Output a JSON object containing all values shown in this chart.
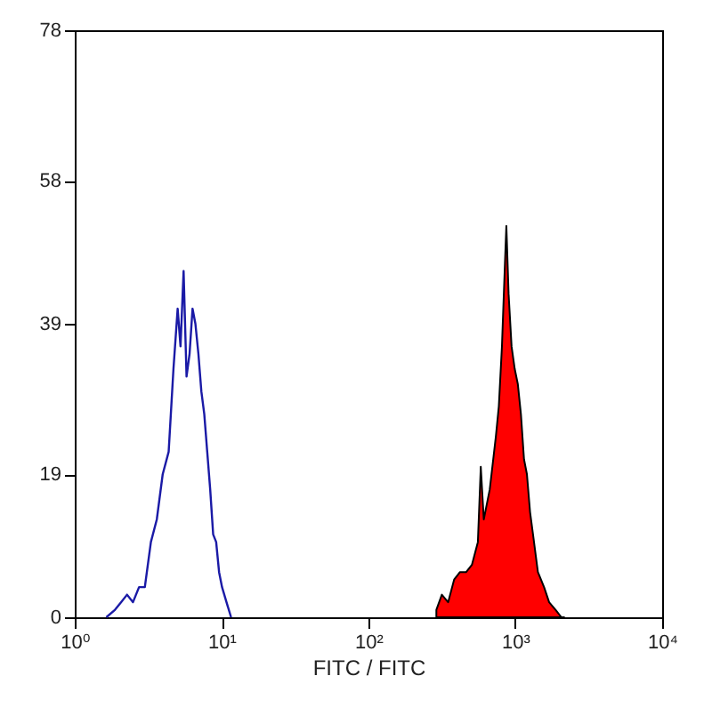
{
  "chart_data": {
    "type": "line",
    "xlabel": "FITC / FITC",
    "log": "x",
    "xlim": [
      1,
      10000
    ],
    "xticks": [
      {
        "value": 1,
        "label": "10⁰"
      },
      {
        "value": 10,
        "label": "10¹"
      },
      {
        "value": 100,
        "label": "10²"
      },
      {
        "value": 1000,
        "label": "10³"
      },
      {
        "value": 10000,
        "label": "10⁴"
      }
    ],
    "ylim": [
      0,
      78
    ],
    "yticks": [
      0,
      19,
      39,
      58,
      78
    ],
    "series": [
      {
        "color": "#1a1aa6",
        "x": [
          1.64,
          1.88,
          2.07,
          2.27,
          2.49,
          2.74,
          3.0,
          3.3,
          3.62,
          3.97,
          4.36,
          4.7,
          5.02,
          5.25,
          5.51,
          5.77,
          6.05,
          6.34,
          6.63,
          6.95,
          7.28,
          7.62,
          7.98,
          8.36,
          8.76,
          9.18,
          9.61,
          10.07,
          10.8,
          11.6
        ],
        "values": [
          0,
          1,
          2,
          3,
          2,
          4,
          4,
          10,
          13,
          19,
          22,
          33,
          41,
          36,
          46,
          32,
          35,
          41,
          39,
          35,
          30,
          27,
          22,
          17,
          11,
          10,
          6,
          4,
          2,
          0
        ]
      },
      {
        "type": "area",
        "color": "#ff0000",
        "x": [
          290,
          316,
          349,
          383,
          420,
          463,
          507,
          556,
          582,
          610,
          670,
          737,
          772,
          811,
          850,
          869,
          900,
          943,
          991,
          1040,
          1092,
          1146,
          1200,
          1260,
          1320,
          1425,
          1570,
          1700,
          1880,
          2060,
          2150
        ],
        "values": [
          1,
          3,
          2,
          5,
          6,
          6,
          7,
          10,
          20,
          13,
          17,
          24,
          28,
          36,
          47,
          52,
          43,
          36,
          33,
          31,
          27,
          21,
          19,
          14,
          11,
          6,
          4,
          2,
          1,
          0,
          0
        ]
      }
    ]
  }
}
